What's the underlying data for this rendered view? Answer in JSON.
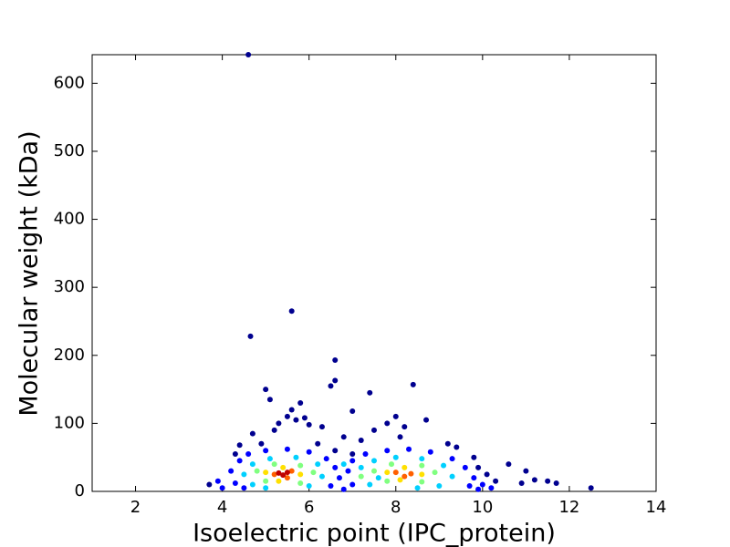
{
  "chart_data": {
    "type": "scatter",
    "xlabel": "Isoelectric point (IPC_protein)",
    "ylabel": "Molecular weight (kDa)",
    "xlim": [
      1,
      14
    ],
    "ylim": [
      0,
      642
    ],
    "xticks": [
      2,
      4,
      6,
      8,
      10,
      12,
      14
    ],
    "yticks": [
      0,
      100,
      200,
      300,
      400,
      500,
      600
    ],
    "x": [
      4.6,
      5.6,
      4.65,
      6.6,
      6.6,
      6.5,
      8.4,
      7.4,
      5.0,
      5.1,
      5.6,
      5.5,
      5.7,
      5.3,
      5.8,
      5.9,
      6.0,
      8.7,
      8.0,
      7.8,
      7.0,
      4.7,
      4.4,
      4.3,
      3.7,
      12.5,
      11.7,
      11.5,
      11.2,
      11.0,
      10.6,
      10.9,
      10.3,
      10.1,
      9.9,
      9.8,
      9.4,
      9.2,
      6.3,
      6.8,
      7.2,
      7.5,
      8.2,
      8.1,
      6.6,
      7.0,
      4.9,
      5.2,
      6.2,
      4.2,
      4.4,
      4.6,
      5.0,
      5.5,
      6.0,
      6.4,
      6.6,
      6.7,
      4.3,
      4.5,
      6.5,
      7.0,
      7.3,
      7.8,
      8.3,
      8.8,
      9.3,
      9.6,
      9.8,
      9.7,
      7.0,
      6.9,
      3.9,
      4.0,
      10.0,
      10.2,
      9.9,
      6.8,
      4.5,
      4.7,
      5.1,
      5.7,
      6.2,
      6.3,
      6.0,
      4.7,
      5.0,
      7.2,
      7.5,
      8.0,
      8.6,
      9.1,
      9.3,
      9.0,
      7.4,
      6.8,
      7.6,
      8.5,
      4.8,
      5.2,
      5.8,
      6.1,
      5.8,
      5.0,
      7.5,
      7.9,
      8.6,
      8.9,
      8.6,
      7.8,
      7.2,
      5.0,
      5.4,
      5.8,
      5.3,
      7.8,
      8.2,
      8.6,
      8.1,
      5.2,
      5.6,
      5.5,
      8.0,
      8.35,
      8.2,
      5.3,
      5.5,
      5.4
    ],
    "values": [
      642,
      265,
      228,
      193,
      163,
      155,
      157,
      145,
      150,
      135,
      120,
      110,
      105,
      100,
      130,
      108,
      98,
      105,
      110,
      100,
      118,
      85,
      68,
      55,
      10,
      5,
      12,
      15,
      17,
      30,
      40,
      12,
      15,
      25,
      35,
      50,
      65,
      70,
      95,
      80,
      75,
      90,
      95,
      80,
      60,
      55,
      70,
      90,
      70,
      30,
      45,
      55,
      60,
      62,
      58,
      48,
      35,
      20,
      12,
      5,
      8,
      45,
      55,
      60,
      62,
      58,
      48,
      35,
      20,
      8,
      10,
      30,
      15,
      5,
      10,
      5,
      3,
      3,
      25,
      40,
      48,
      50,
      40,
      22,
      8,
      10,
      5,
      35,
      45,
      50,
      48,
      38,
      22,
      8,
      10,
      40,
      20,
      5,
      30,
      40,
      38,
      28,
      12,
      15,
      30,
      40,
      38,
      28,
      14,
      15,
      22,
      28,
      35,
      25,
      15,
      28,
      35,
      25,
      17,
      25,
      30,
      20,
      28,
      26,
      22,
      27,
      28,
      24
    ],
    "colors": [
      "#00008f",
      "#00008f",
      "#00008f",
      "#00008f",
      "#00008f",
      "#00008f",
      "#00008f",
      "#00008f",
      "#00008f",
      "#00008f",
      "#00008f",
      "#00008f",
      "#00008f",
      "#00008f",
      "#00008f",
      "#00008f",
      "#00008f",
      "#00008f",
      "#00008f",
      "#00008f",
      "#00008f",
      "#00008f",
      "#00008f",
      "#00008f",
      "#00008f",
      "#00008f",
      "#00008f",
      "#00008f",
      "#00008f",
      "#00008f",
      "#00008f",
      "#00008f",
      "#00008f",
      "#00008f",
      "#00008f",
      "#00008f",
      "#00008f",
      "#00008f",
      "#00008f",
      "#00008f",
      "#00008f",
      "#00008f",
      "#00008f",
      "#00008f",
      "#00008f",
      "#00008f",
      "#00008f",
      "#00008f",
      "#00008f",
      "#0000ff",
      "#0000ff",
      "#0000ff",
      "#0000ff",
      "#0000ff",
      "#0000ff",
      "#0000ff",
      "#0000ff",
      "#0000ff",
      "#0000ff",
      "#0000ff",
      "#0000ff",
      "#0000ff",
      "#0000ff",
      "#0000ff",
      "#0000ff",
      "#0000ff",
      "#0000ff",
      "#0000ff",
      "#0000ff",
      "#0000ff",
      "#0000ff",
      "#0000ff",
      "#0000ff",
      "#0000ff",
      "#0000ff",
      "#0000ff",
      "#0000ff",
      "#0000ff",
      "#00d0ff",
      "#00d0ff",
      "#00d0ff",
      "#00d0ff",
      "#00d0ff",
      "#00d0ff",
      "#00d0ff",
      "#00d0ff",
      "#00d0ff",
      "#00d0ff",
      "#00d0ff",
      "#00d0ff",
      "#00d0ff",
      "#00d0ff",
      "#00d0ff",
      "#00d0ff",
      "#00d0ff",
      "#00d0ff",
      "#00d0ff",
      "#00d0ff",
      "#80ff80",
      "#80ff80",
      "#80ff80",
      "#80ff80",
      "#80ff80",
      "#80ff80",
      "#80ff80",
      "#80ff80",
      "#80ff80",
      "#80ff80",
      "#80ff80",
      "#80ff80",
      "#80ff80",
      "#ffe000",
      "#ffe000",
      "#ffe000",
      "#ffe000",
      "#ffe000",
      "#ffe000",
      "#ffe000",
      "#ffe000",
      "#ff6000",
      "#ff6000",
      "#ff6000",
      "#ff6000",
      "#ff6000",
      "#ff6000",
      "#c00000",
      "#c00000",
      "#c00000"
    ]
  }
}
